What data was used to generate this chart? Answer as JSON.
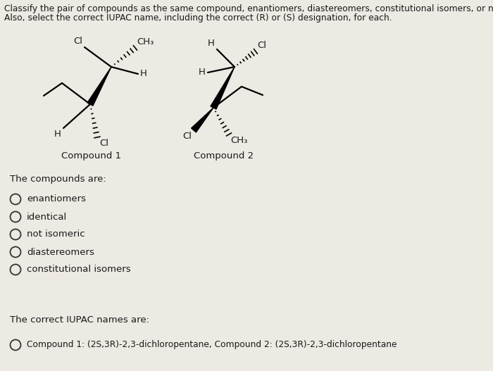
{
  "title_line1": "Classify the pair of compounds as the same compound, enantiomers, diastereomers, constitutional isomers, or not isomeric.",
  "title_line2": "Also, select the correct IUPAC name, including the correct (R) or (S) designation, for each.",
  "compound1_label": "Compound 1",
  "compound2_label": "Compound 2",
  "compounds_are_label": "The compounds are:",
  "radio_options": [
    "enantiomers",
    "identical",
    "not isomeric",
    "diastereomers",
    "constitutional isomers"
  ],
  "iupac_label": "The correct IUPAC names are:",
  "iupac_option": "Compound 1: (2S,3R)-2,3-dichloropentane, Compound 2: (2S,3R)-2,3-dichloropentane",
  "bg_color": "#ede9e3",
  "text_color": "#1a1a1a",
  "font_size_title": 8.8,
  "font_size_body": 9.5,
  "font_size_chem": 9.5,
  "font_size_iupac": 8.8
}
